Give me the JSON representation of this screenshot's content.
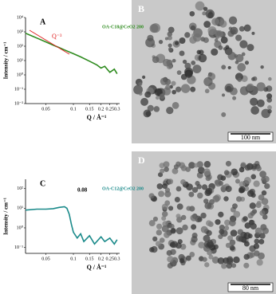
{
  "chart_data": [
    {
      "type": "line",
      "panel_label": "A",
      "xlabel": "Q / Å⁻¹",
      "ylabel": "Intensity / cm⁻¹",
      "xlog": true,
      "ylog": true,
      "xlim": [
        0.03,
        0.32
      ],
      "ylim": [
        0.01,
        10000
      ],
      "xticks": [
        0.05,
        0.1,
        0.15,
        0.2,
        0.25,
        0.3
      ],
      "yticks": [
        {
          "value": 0.01,
          "label": "10⁻²"
        },
        {
          "value": 0.1,
          "label": "10⁻¹"
        },
        {
          "value": 1,
          "label": "10⁰"
        },
        {
          "value": 10,
          "label": "10¹"
        },
        {
          "value": 100,
          "label": "10²"
        },
        {
          "value": 1000,
          "label": "10³"
        },
        {
          "value": 10000,
          "label": "10⁴"
        }
      ],
      "series": [
        {
          "name": "OA-C18@CeO2 200",
          "color": "#2e8b1e",
          "x": [
            0.03,
            0.035,
            0.04,
            0.05,
            0.06,
            0.07,
            0.08,
            0.1,
            0.12,
            0.15,
            0.18,
            0.2,
            0.22,
            0.25,
            0.28,
            0.3
          ],
          "values": [
            800,
            530,
            370,
            200,
            120,
            80,
            55,
            30,
            18,
            9,
            5,
            3,
            4,
            1.5,
            2.5,
            1.2
          ]
        }
      ],
      "annotation": {
        "text": "Q⁻³",
        "color": "#e02020"
      }
    },
    {
      "type": "line",
      "panel_label": "C",
      "xlabel": "Q / Å⁻¹",
      "ylabel": "Intensity / cm⁻¹",
      "xlog": true,
      "ylog": true,
      "xlim": [
        0.03,
        0.32
      ],
      "ylim": [
        0.05,
        300
      ],
      "xticks": [
        0.05,
        0.1,
        0.15,
        0.2,
        0.25,
        0.3
      ],
      "yticks": [
        {
          "value": 0.1,
          "label": "10⁻¹"
        },
        {
          "value": 1,
          "label": "10⁰"
        },
        {
          "value": 10,
          "label": "10¹"
        },
        {
          "value": 100,
          "label": "10²"
        }
      ],
      "series": [
        {
          "name": "OA-C12@CeO2 200",
          "color": "#1a8a8a",
          "x": [
            0.03,
            0.04,
            0.05,
            0.06,
            0.07,
            0.08,
            0.085,
            0.09,
            0.095,
            0.1,
            0.11,
            0.12,
            0.13,
            0.15,
            0.17,
            0.2,
            0.22,
            0.25,
            0.28,
            0.3
          ],
          "values": [
            8,
            9,
            9,
            9.5,
            11,
            12,
            10,
            5,
            1.5,
            0.6,
            0.3,
            0.5,
            0.2,
            0.4,
            0.15,
            0.35,
            0.2,
            0.3,
            0.15,
            0.25
          ]
        }
      ],
      "annotation": {
        "text": "0.08"
      }
    }
  ],
  "images": [
    {
      "label": "B",
      "scale_bar": "100 nm"
    },
    {
      "label": "D",
      "scale_bar": "80 nm"
    }
  ]
}
